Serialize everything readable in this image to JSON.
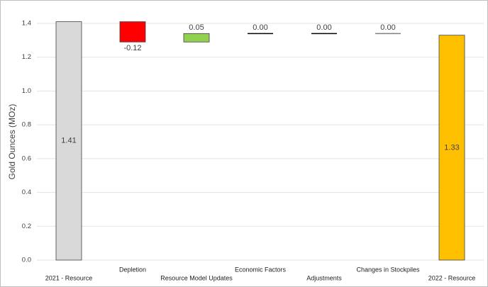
{
  "chart_data": {
    "type": "waterfall",
    "y_label": "Gold Ounces (MOz)",
    "categories": [
      "2021 - Resource",
      "Depletion",
      "Resource Model Updates",
      "Economic Factors",
      "Adjustments",
      "Changes in Stockpiles",
      "2022 - Resource"
    ],
    "values": [
      1.41,
      -0.12,
      0.05,
      0.0,
      0.0,
      0.0,
      1.33
    ],
    "value_labels": [
      "1.41",
      "-0.12",
      "0.05",
      "0.00",
      "0.00",
      "0.00",
      "1.33"
    ],
    "is_total": [
      true,
      false,
      false,
      false,
      false,
      false,
      true
    ],
    "colors": [
      "#d9d9d9",
      "#ff0000",
      "#92d050",
      "#000000",
      "#000000",
      "#7f7f7f",
      "#ffc000"
    ],
    "ylim": [
      0,
      1.4
    ],
    "yticks": [
      {
        "value": 0,
        "label": "0.0"
      },
      {
        "value": 0.2,
        "label": "0.2"
      },
      {
        "value": 0.4,
        "label": "0.4"
      },
      {
        "value": 0.6,
        "label": "0.6"
      },
      {
        "value": 0.8,
        "label": "0.8"
      },
      {
        "value": 1.0,
        "label": "1.0"
      },
      {
        "value": 1.2,
        "label": "1.2"
      },
      {
        "value": 1.4,
        "label": "1.4"
      }
    ],
    "grid": true
  }
}
